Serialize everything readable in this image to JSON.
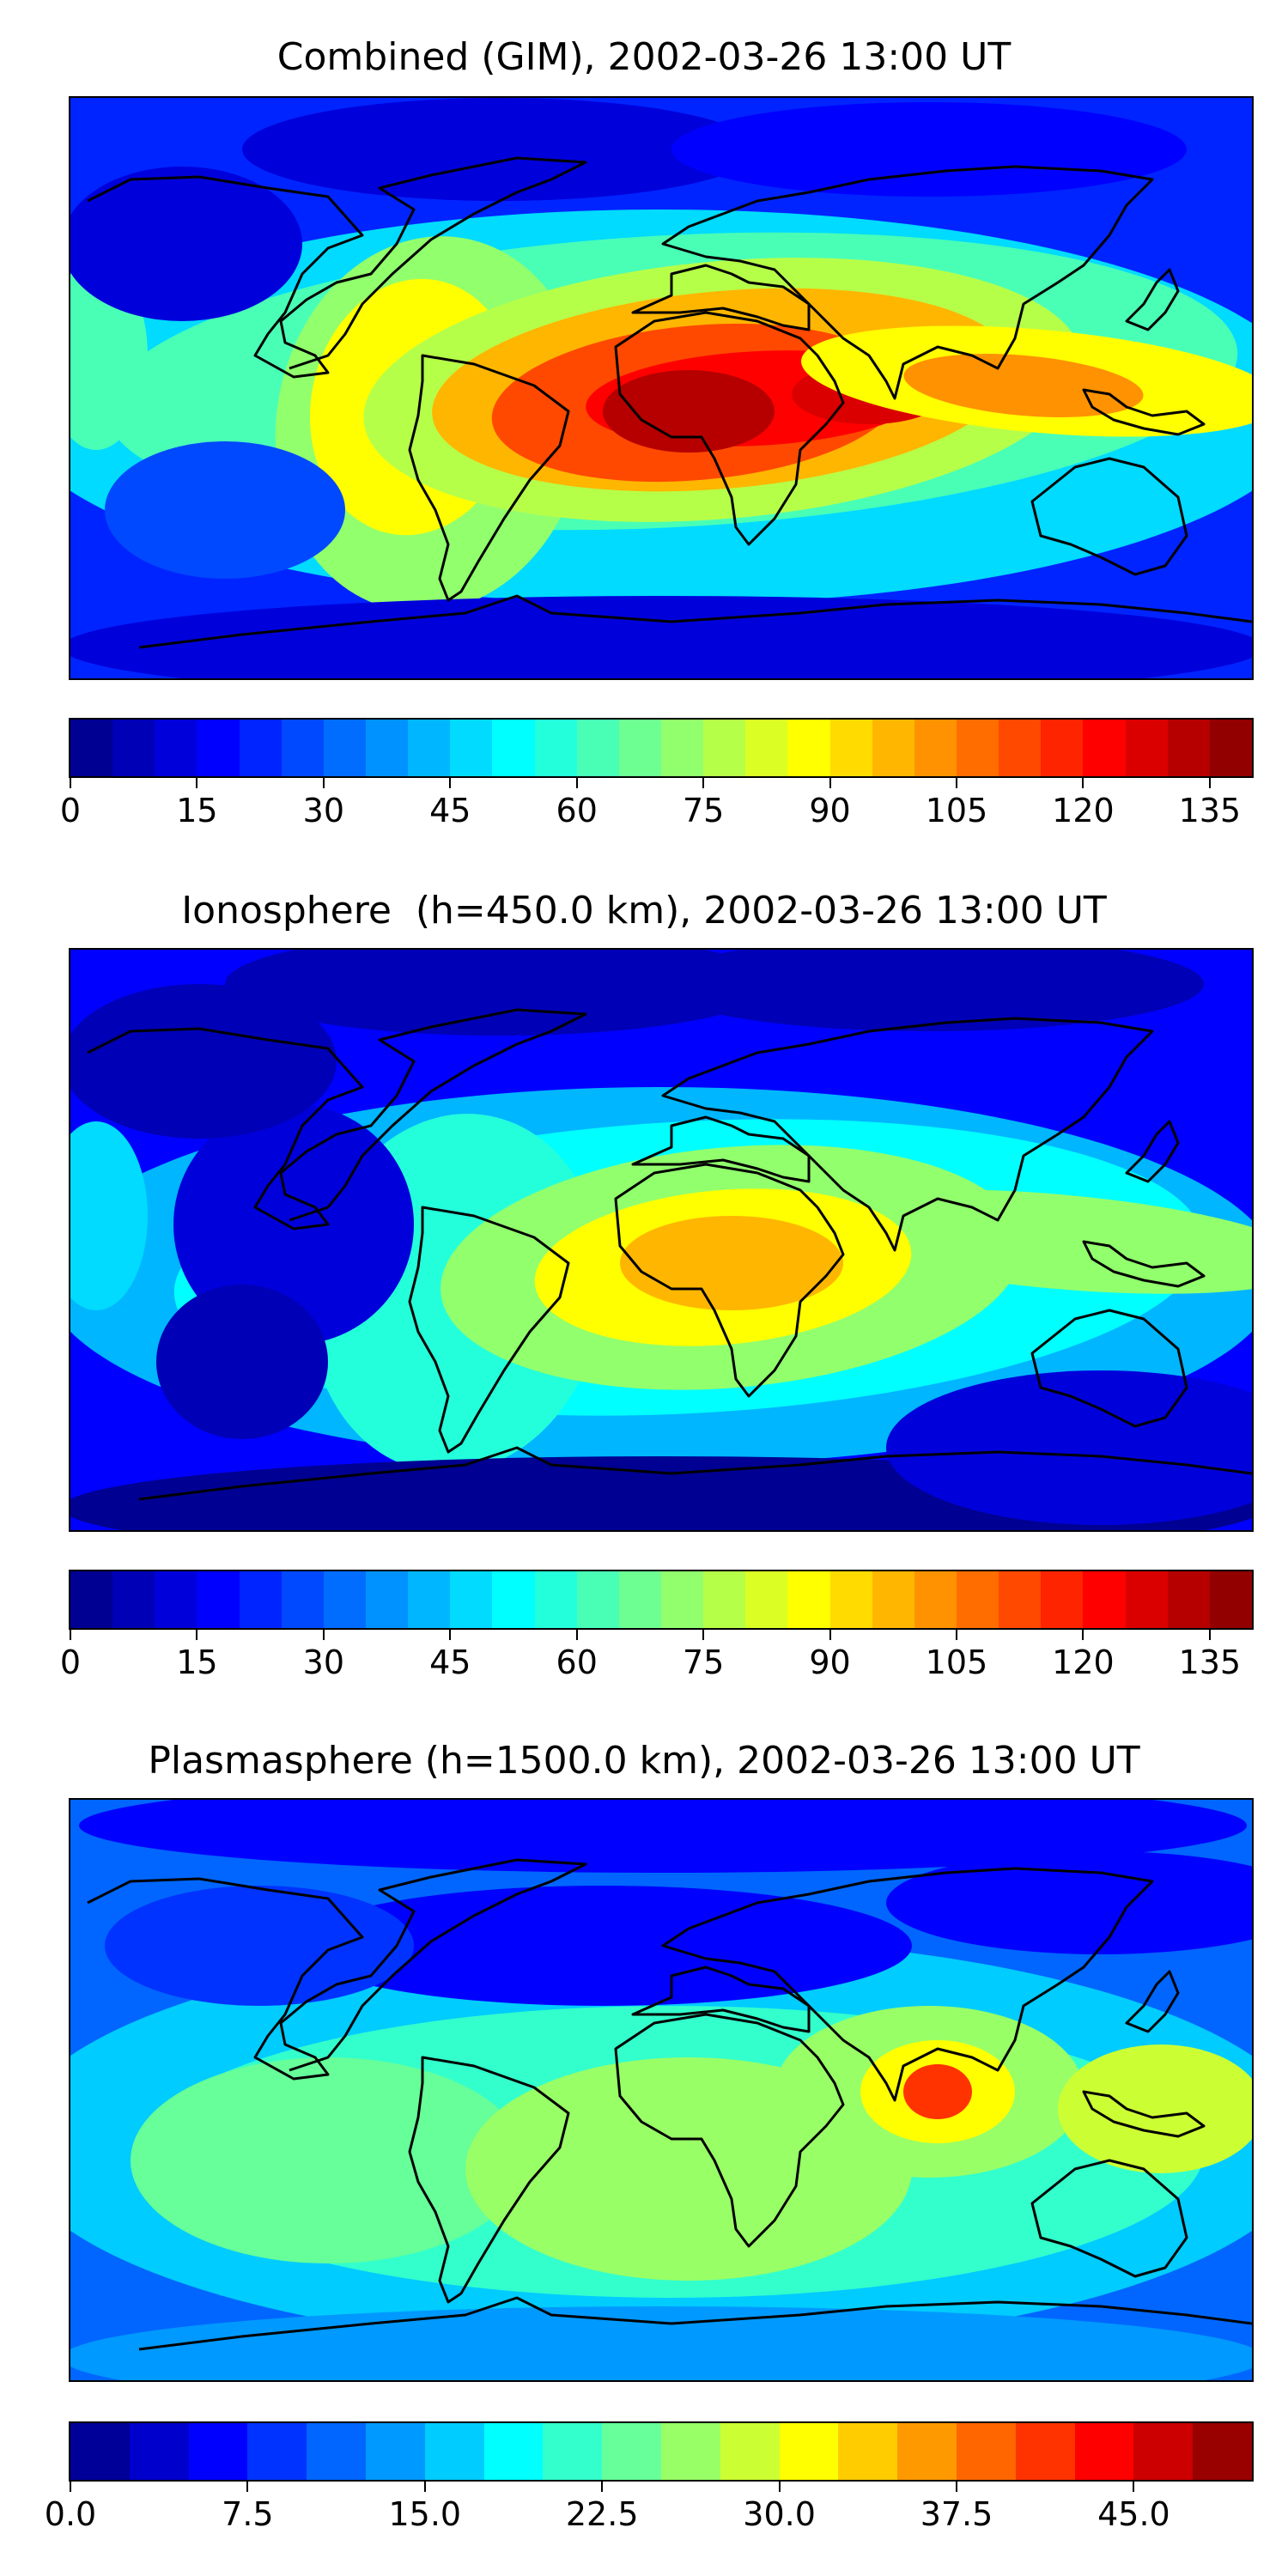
{
  "panels": [
    {
      "title": "Combined (GIM), 2002-03-26 13:00 UT",
      "colorbar": {
        "min": 0,
        "max": 140,
        "levels": 28,
        "ticks": [
          "0",
          "15",
          "30",
          "45",
          "60",
          "75",
          "90",
          "105",
          "120",
          "135"
        ],
        "tick_values": [
          0,
          15,
          30,
          45,
          60,
          75,
          90,
          105,
          120,
          135
        ]
      },
      "field_features": [
        {
          "region": "Central Africa / equatorial Atlantic",
          "value": 135
        },
        {
          "region": "Indian Ocean / Southeast Asia band",
          "value": 110
        },
        {
          "region": "South America",
          "value": 80
        },
        {
          "region": "Polar regions",
          "value": 12
        }
      ]
    },
    {
      "title": "Ionosphere  (h=450.0 km), 2002-03-26 13:00 UT",
      "colorbar": {
        "min": 0,
        "max": 140,
        "levels": 28,
        "ticks": [
          "0",
          "15",
          "30",
          "45",
          "60",
          "75",
          "90",
          "105",
          "120",
          "135"
        ],
        "tick_values": [
          0,
          15,
          30,
          45,
          60,
          75,
          90,
          105,
          120,
          135
        ]
      },
      "field_features": [
        {
          "region": "Central Africa",
          "value": 97
        },
        {
          "region": "Indian Ocean / Indonesia band",
          "value": 75
        },
        {
          "region": "South America",
          "value": 60
        },
        {
          "region": "Polar regions",
          "value": 5
        }
      ]
    },
    {
      "title": "Plasmasphere (h=1500.0 km), 2002-03-26 13:00 UT",
      "colorbar": {
        "min": 0,
        "max": 50,
        "levels": 20,
        "ticks": [
          "0.0",
          "7.5",
          "15.0",
          "22.5",
          "30.0",
          "37.5",
          "45.0"
        ],
        "tick_values": [
          0,
          7.5,
          15,
          22.5,
          30,
          37.5,
          45
        ]
      },
      "field_features": [
        {
          "region": "India",
          "value": 40
        },
        {
          "region": "Western Pacific",
          "value": 30
        },
        {
          "region": "Southern Africa",
          "value": 27
        },
        {
          "region": "North Atlantic / northern latitudes",
          "value": 6
        }
      ]
    }
  ],
  "colormap": "jet"
}
